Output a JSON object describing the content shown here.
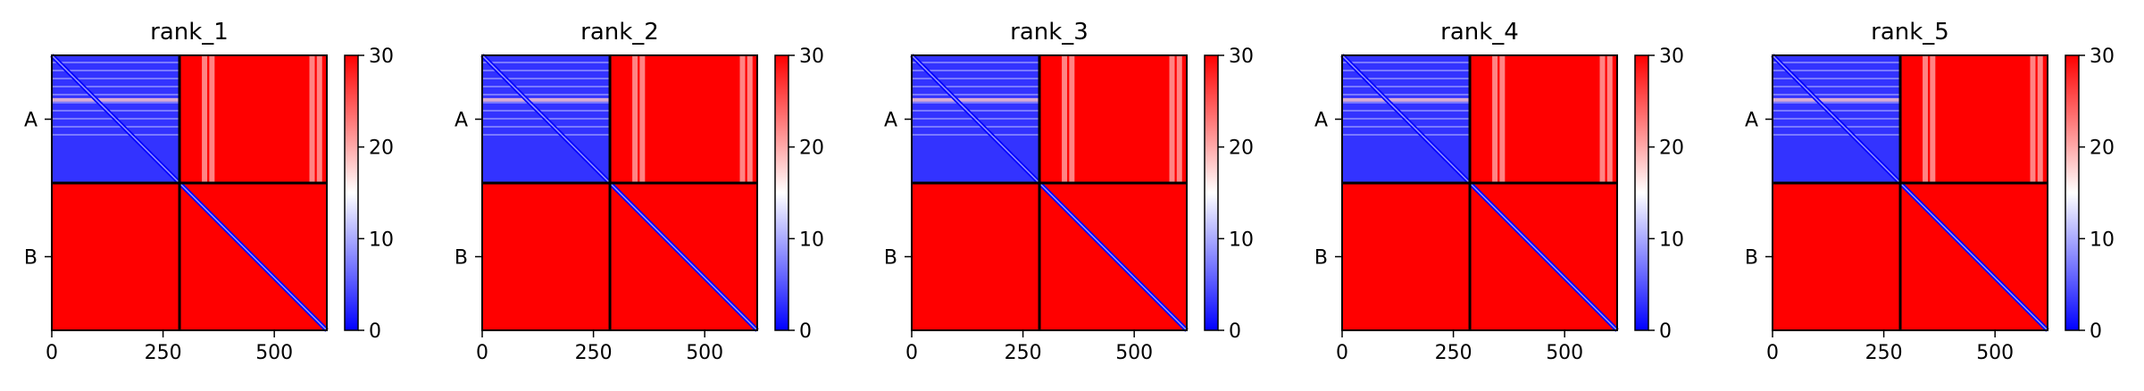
{
  "chart_data": [
    {
      "type": "heatmap",
      "title": "rank_1",
      "xlabel": "",
      "ylabel": "",
      "x_ticks": [
        0,
        250,
        500
      ],
      "xlim": [
        0,
        618
      ],
      "ylim": [
        0,
        618
      ],
      "chain_boundary": 287,
      "y_category_labels": [
        "A",
        "B"
      ],
      "colorbar": {
        "min": 0,
        "max": 30,
        "ticks": [
          0,
          10,
          20,
          30
        ],
        "colormap": "bwr"
      },
      "blocks": [
        {
          "rows": "A",
          "cols": "A",
          "value": 3
        },
        {
          "rows": "A",
          "cols": "B",
          "value": 30
        },
        {
          "rows": "B",
          "cols": "A",
          "value": 30
        },
        {
          "rows": "B",
          "cols": "B",
          "value": 30
        }
      ],
      "diagonal_value": 0
    },
    {
      "type": "heatmap",
      "title": "rank_2",
      "xlabel": "",
      "ylabel": "",
      "x_ticks": [
        0,
        250,
        500
      ],
      "xlim": [
        0,
        618
      ],
      "ylim": [
        0,
        618
      ],
      "chain_boundary": 287,
      "y_category_labels": [
        "A",
        "B"
      ],
      "colorbar": {
        "min": 0,
        "max": 30,
        "ticks": [
          0,
          10,
          20,
          30
        ],
        "colormap": "bwr"
      },
      "blocks": [
        {
          "rows": "A",
          "cols": "A",
          "value": 3
        },
        {
          "rows": "A",
          "cols": "B",
          "value": 30
        },
        {
          "rows": "B",
          "cols": "A",
          "value": 30
        },
        {
          "rows": "B",
          "cols": "B",
          "value": 30
        }
      ],
      "diagonal_value": 0
    },
    {
      "type": "heatmap",
      "title": "rank_3",
      "xlabel": "",
      "ylabel": "",
      "x_ticks": [
        0,
        250,
        500
      ],
      "xlim": [
        0,
        618
      ],
      "ylim": [
        0,
        618
      ],
      "chain_boundary": 287,
      "y_category_labels": [
        "A",
        "B"
      ],
      "colorbar": {
        "min": 0,
        "max": 30,
        "ticks": [
          0,
          10,
          20,
          30
        ],
        "colormap": "bwr"
      },
      "blocks": [
        {
          "rows": "A",
          "cols": "A",
          "value": 3
        },
        {
          "rows": "A",
          "cols": "B",
          "value": 30
        },
        {
          "rows": "B",
          "cols": "A",
          "value": 30
        },
        {
          "rows": "B",
          "cols": "B",
          "value": 30
        }
      ],
      "diagonal_value": 0
    },
    {
      "type": "heatmap",
      "title": "rank_4",
      "xlabel": "",
      "ylabel": "",
      "x_ticks": [
        0,
        250,
        500
      ],
      "xlim": [
        0,
        618
      ],
      "ylim": [
        0,
        618
      ],
      "chain_boundary": 287,
      "y_category_labels": [
        "A",
        "B"
      ],
      "colorbar": {
        "min": 0,
        "max": 30,
        "ticks": [
          0,
          10,
          20,
          30
        ],
        "colormap": "bwr"
      },
      "blocks": [
        {
          "rows": "A",
          "cols": "A",
          "value": 3
        },
        {
          "rows": "A",
          "cols": "B",
          "value": 30
        },
        {
          "rows": "B",
          "cols": "A",
          "value": 30
        },
        {
          "rows": "B",
          "cols": "B",
          "value": 30
        }
      ],
      "diagonal_value": 0
    },
    {
      "type": "heatmap",
      "title": "rank_5",
      "xlabel": "",
      "ylabel": "",
      "x_ticks": [
        0,
        250,
        500
      ],
      "xlim": [
        0,
        618
      ],
      "ylim": [
        0,
        618
      ],
      "chain_boundary": 287,
      "y_category_labels": [
        "A",
        "B"
      ],
      "colorbar": {
        "min": 0,
        "max": 30,
        "ticks": [
          0,
          10,
          20,
          30
        ],
        "colormap": "bwr"
      },
      "blocks": [
        {
          "rows": "A",
          "cols": "A",
          "value": 3
        },
        {
          "rows": "A",
          "cols": "B",
          "value": 30
        },
        {
          "rows": "B",
          "cols": "A",
          "value": 30
        },
        {
          "rows": "B",
          "cols": "B",
          "value": 30
        }
      ],
      "diagonal_value": 0
    }
  ]
}
